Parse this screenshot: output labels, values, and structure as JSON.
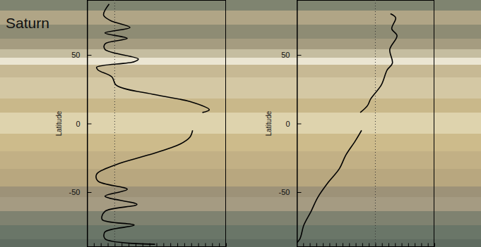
{
  "chart_data": [
    {
      "type": "line",
      "title": "Saturn",
      "ylabel": "Latitude",
      "xlim": [
        -100,
        400
      ],
      "xticks": [
        -100,
        -75,
        -50,
        -25,
        0,
        25,
        50,
        75,
        100,
        125,
        150,
        175,
        200,
        225,
        250,
        275,
        300,
        325,
        350,
        375,
        400
      ],
      "ylim": [
        -90,
        90
      ],
      "yticks": [
        -50,
        0,
        50
      ],
      "tick_labels": "y",
      "x_reference": 0,
      "series": [
        {
          "color": "#000000",
          "x": [
            -20,
            -40,
            -15,
            55,
            -35,
            45,
            -35,
            -35,
            85,
            70,
            -65,
            -60,
            -10,
            5,
            145,
            270,
            340,
            315,
            null,
            280,
            270,
            235,
            120,
            5,
            -65,
            -60,
            45,
            -35,
            80,
            -35,
            -45,
            70,
            -35,
            -35,
            145
          ],
          "y": [
            87,
            79,
            75,
            70,
            66,
            62,
            58,
            54,
            47,
            45,
            41,
            39,
            34,
            28,
            21,
            16,
            10,
            8,
            null,
            -5,
            -10,
            -15,
            -23,
            -30,
            -37,
            -42,
            -48,
            -53,
            -59,
            -64,
            -70,
            -74,
            -79,
            -84,
            -88
          ]
        }
      ]
    },
    {
      "type": "line",
      "ylabel": "Latitude",
      "xlim": [
        -1.2,
        0.9
      ],
      "xticks": [
        -1.2,
        -1.1,
        -1,
        -0.9,
        -0.8,
        -0.7,
        -0.6,
        -0.5,
        -0.4,
        -0.3,
        -0.2,
        -0.1,
        0,
        0.1,
        0.2,
        0.3,
        0.4,
        0.5,
        0.6,
        0.7,
        0.8,
        0.9
      ],
      "ylim": [
        -90,
        90
      ],
      "yticks": [
        -50,
        0,
        50
      ],
      "tick_labels": "y",
      "x_reference": 0,
      "series": [
        {
          "color": "#000000",
          "x": [
            0.23,
            0.31,
            0.25,
            0.33,
            0.22,
            0.26,
            0.18,
            0.09,
            -0.07,
            -0.12,
            -0.23,
            null,
            -0.21,
            -0.31,
            -0.45,
            -0.55,
            -0.72,
            -0.88,
            -0.98,
            -1.09,
            -1.15,
            -1.22
          ],
          "y": [
            80,
            77,
            69,
            64,
            54,
            44,
            39,
            28,
            18,
            13,
            8,
            null,
            -5,
            -13,
            -23,
            -33,
            -43,
            -54,
            -64,
            -74,
            -84,
            -88
          ]
        }
      ]
    }
  ]
}
